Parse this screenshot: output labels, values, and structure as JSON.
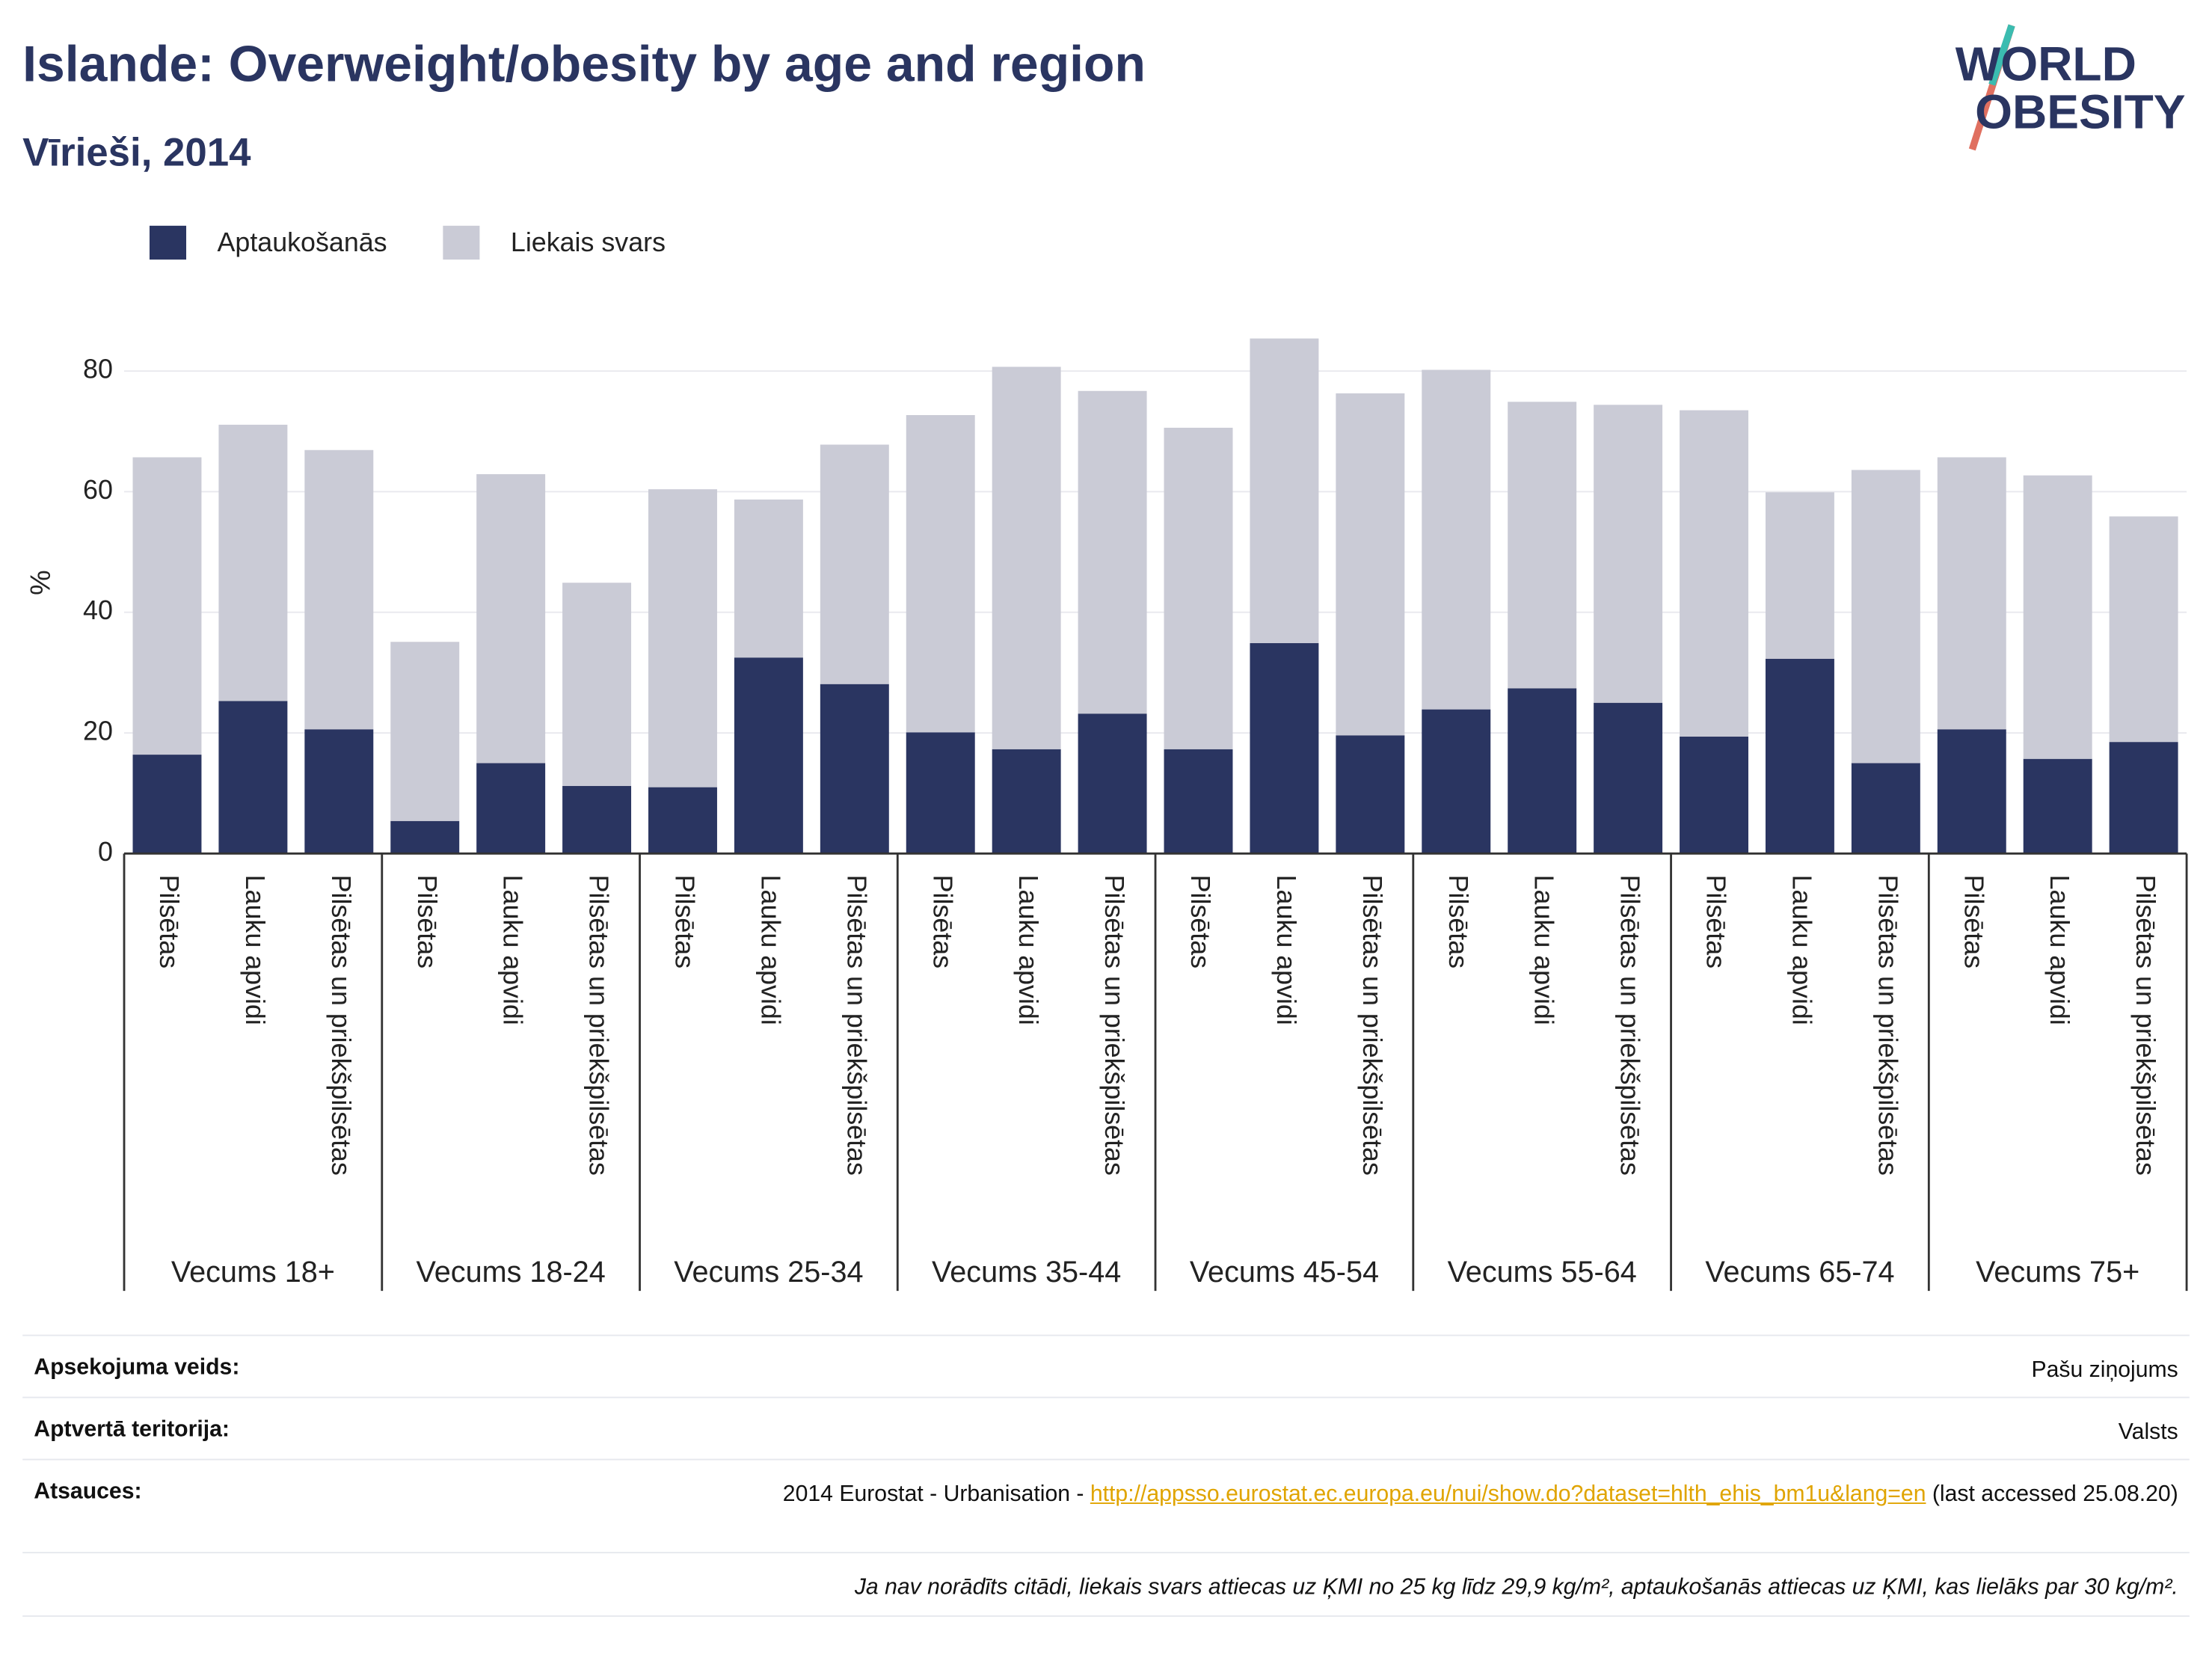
{
  "chart_data": {
    "type": "stacked_bar",
    "title": "Islande: Overweight/obesity by age and region",
    "subtitle": "Vīrieši, 2014",
    "ylabel": "%",
    "groups": [
      "Vecums 18+",
      "Vecums 18-24",
      "Vecums 25-34",
      "Vecums 35-44",
      "Vecums 45-54",
      "Vecums 55-64",
      "Vecums 65-74",
      "Vecums 75+"
    ],
    "categories": [
      "Pilsētas",
      "Lauku apvidi",
      "Pilsētas un priekšpilsētas",
      "Pilsētas",
      "Lauku apvidi",
      "Pilsētas un priekšpilsētas",
      "Pilsētas",
      "Lauku apvidi",
      "Pilsētas un priekšpilsētas",
      "Pilsētas",
      "Lauku apvidi",
      "Pilsētas un priekšpilsētas",
      "Pilsētas",
      "Lauku apvidi",
      "Pilsētas un priekšpilsētas",
      "Pilsētas",
      "Lauku apvidi",
      "Pilsētas un priekšpilsētas",
      "Pilsētas",
      "Lauku apvidi",
      "Pilsētas un priekšpilsētas",
      "Pilsētas",
      "Lauku apvidi",
      "Pilsētas un priekšpilsētas"
    ],
    "series": [
      {
        "name": "Aptaukošanās",
        "color": "#2a3561",
        "values": [
          16.4,
          25.3,
          20.6,
          5.4,
          15.0,
          11.2,
          11.0,
          32.5,
          28.1,
          20.1,
          17.3,
          23.2,
          17.3,
          34.9,
          19.6,
          23.9,
          27.4,
          25.0,
          19.4,
          32.3,
          15.0,
          20.6,
          15.7,
          18.5
        ]
      },
      {
        "name": "Liekais svars",
        "color": "#cacbd6",
        "values": [
          49.3,
          45.8,
          46.3,
          29.7,
          47.9,
          33.7,
          49.4,
          26.2,
          39.7,
          52.6,
          63.4,
          53.5,
          53.3,
          50.5,
          56.7,
          56.3,
          47.5,
          49.4,
          54.1,
          27.6,
          48.6,
          45.1,
          47.0,
          37.4
        ]
      }
    ],
    "ylim": [
      0,
      88
    ],
    "yticks": [
      0,
      20,
      40,
      60,
      80
    ],
    "grid": true,
    "legend": "top-left"
  },
  "logo": [
    "WORLD",
    "OBESITY"
  ],
  "footer": {
    "survey_type": {
      "label": "Apsekojuma veids:",
      "value": "Pašu ziņojums"
    },
    "coverage": {
      "label": "Aptvertā teritorija:",
      "value": "Valsts"
    },
    "references": {
      "label": "Atsauces:",
      "text": "2014 Eurostat - Urbanisation - ",
      "url": "http://appsso.eurostat.ec.europa.eu/nui/show.do?dataset=hlth_ehis_bm1u&lang=en",
      "accessed": "(last accessed 25.08.20)"
    },
    "note": "Ja nav norādīts citādi, liekais svars attiecas uz ĶMI no 25 kg līdz 29,9 kg/m², aptaukošanās attiecas uz ĶMI, kas lielāks par 30 kg/m²."
  }
}
